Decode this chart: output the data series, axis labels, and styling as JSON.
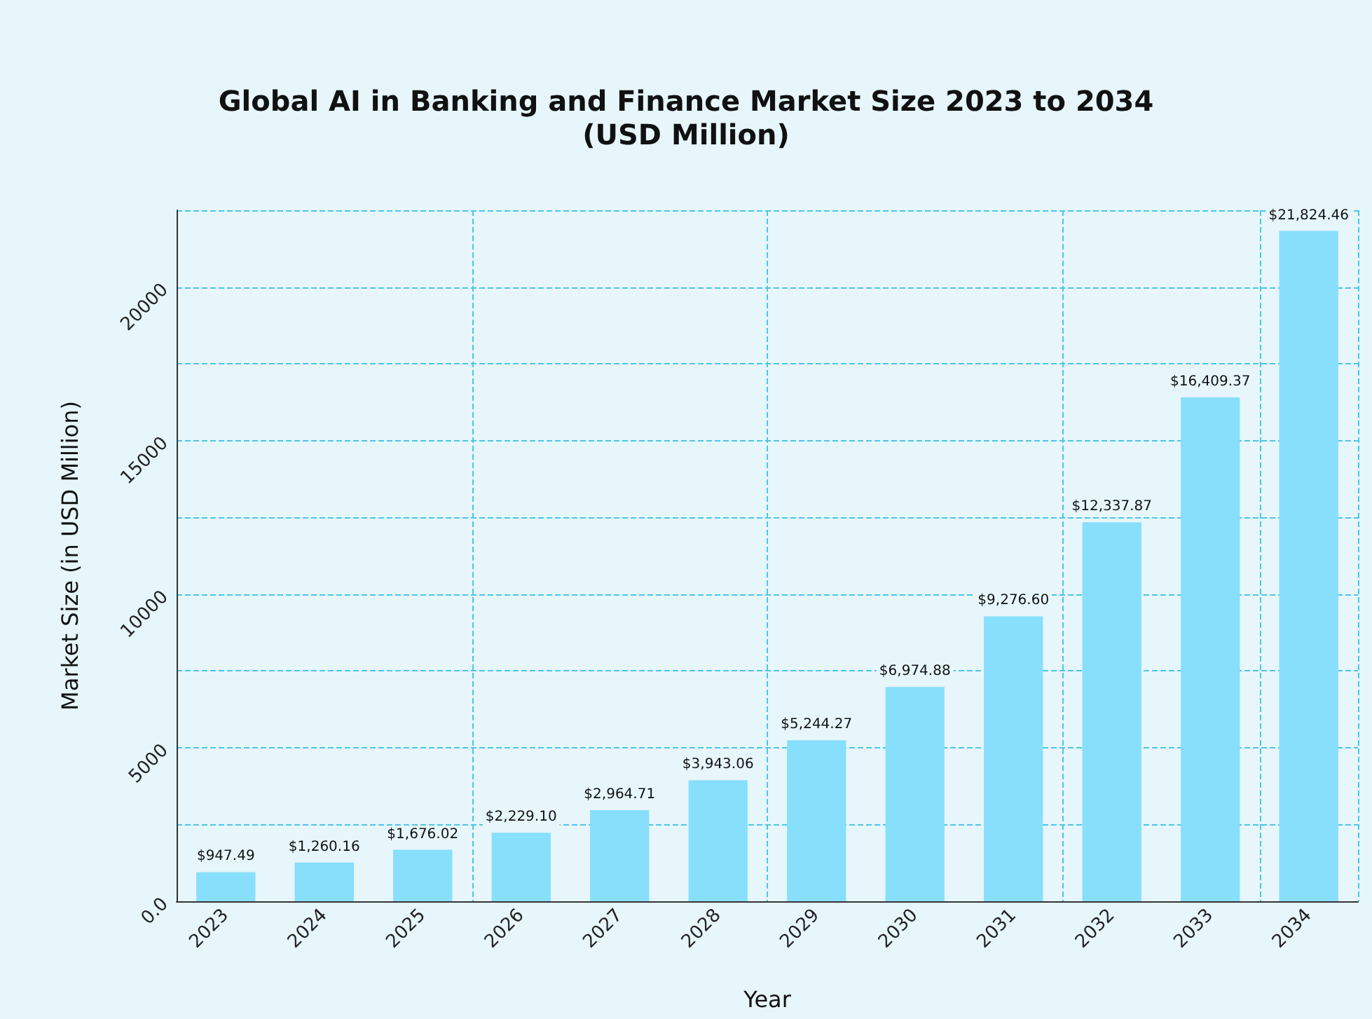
{
  "chart_data": {
    "type": "bar",
    "title": "Global AI in Banking and Finance Market Size 2023 to 2034\n(USD Million)",
    "xlabel": "Year",
    "ylabel": "Market Size (in USD Million)",
    "categories": [
      "2023",
      "2024",
      "2025",
      "2026",
      "2027",
      "2028",
      "2029",
      "2030",
      "2031",
      "2032",
      "2033",
      "2034"
    ],
    "values": [
      947.49,
      1260.16,
      1676.02,
      2229.1,
      2964.71,
      3943.06,
      5244.27,
      6974.88,
      9276.6,
      12337.87,
      16409.37,
      21824.46
    ],
    "value_labels": [
      "$947.49",
      "$1,260.16",
      "$1,676.02",
      "$2,229.10",
      "$2,964.71",
      "$3,943.06",
      "$5,244.27",
      "$6,974.88",
      "$9,276.60",
      "$12,337.87",
      "$16,409.37",
      "$21,824.46"
    ],
    "color": "#87dffc",
    "ylim": [
      0,
      22500
    ],
    "yticks": [
      {
        "value": 0,
        "label": "0.0"
      },
      {
        "value": 2500,
        "label": null
      },
      5000,
      {
        "value": 7500,
        "label": null
      },
      10000,
      {
        "value": 12500,
        "label": null
      },
      15000,
      {
        "value": 17500,
        "label": null
      },
      20000,
      {
        "value": 22500,
        "label": null
      }
    ],
    "grid": true
  }
}
